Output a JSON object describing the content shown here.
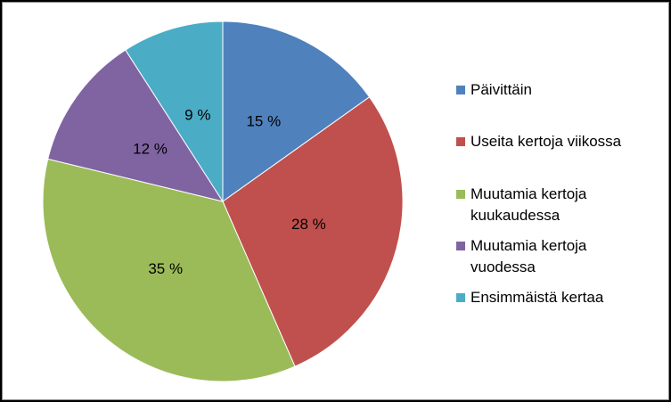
{
  "chart_data": {
    "type": "pie",
    "categories": [
      "Päivittäin",
      "Useita kertoja viikossa",
      "Muutamia kertoja kuukaudessa",
      "Muutamia kertoja vuodessa",
      "Ensimmäistä kertaa"
    ],
    "values": [
      15,
      28,
      35,
      12,
      9
    ],
    "value_labels": [
      "15 %",
      "28 %",
      "35 %",
      "12 %",
      "9 %"
    ],
    "colors": [
      "#4f81bd",
      "#c0504d",
      "#9bbb59",
      "#8064a2",
      "#4bacc6"
    ],
    "legend": "right"
  }
}
